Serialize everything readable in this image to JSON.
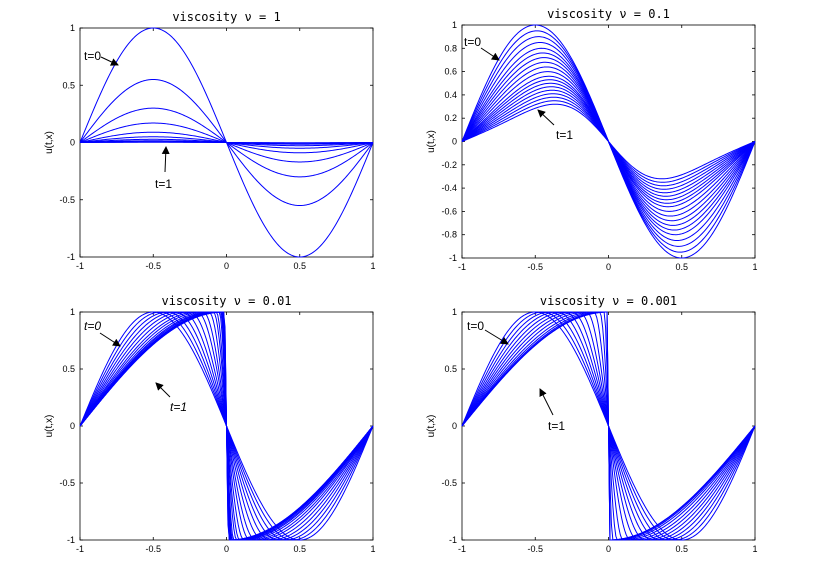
{
  "colors": {
    "curve": "#0000ff",
    "axes": "#000000",
    "background": "#ffffff"
  },
  "chart_data": [
    {
      "type": "line",
      "title": "viscosity ν = 1",
      "ylabel": "u(t,x)",
      "xlim": [
        -1,
        1
      ],
      "ylim": [
        -1,
        1
      ],
      "xticks": [
        "-1",
        "-0.5",
        "0",
        "0.5",
        "1"
      ],
      "yticks": [
        "1",
        "0.5",
        "0",
        "-0.5",
        "-1"
      ],
      "amplitudes": [
        1.0,
        0.55,
        0.3,
        0.17,
        0.09,
        0.05,
        0.028,
        0.015,
        0.008,
        0.004,
        0.002
      ],
      "annotations": [
        {
          "text": "t=0",
          "italic": false
        },
        {
          "text": "t=1",
          "italic": false
        }
      ]
    },
    {
      "type": "line",
      "title": "viscosity ν = 0.1",
      "ylabel": "u(t,x)",
      "xlim": [
        -1,
        1
      ],
      "ylim": [
        -1,
        1
      ],
      "xticks": [
        "-1",
        "-0.5",
        "0",
        "0.5",
        "1"
      ],
      "yticks": [
        "1",
        "0.8",
        "0.6",
        "0.4",
        "0.2",
        "0",
        "-0.2",
        "-0.4",
        "-0.6",
        "-0.8",
        "-1"
      ],
      "amplitudes": [
        1.0,
        0.95,
        0.9,
        0.85,
        0.8,
        0.76,
        0.72,
        0.68,
        0.64,
        0.6,
        0.56,
        0.53,
        0.5,
        0.47,
        0.44,
        0.41,
        0.38,
        0.35,
        0.32
      ],
      "annotations": [
        {
          "text": "t=0",
          "italic": false
        },
        {
          "text": "t=1",
          "italic": false
        }
      ]
    },
    {
      "type": "line",
      "title": "viscosity ν = 0.01",
      "ylabel": "u(t,x)",
      "xlim": [
        -1,
        1
      ],
      "ylim": [
        -1,
        1
      ],
      "xticks": [
        "-1",
        "-0.5",
        "0",
        "0.5",
        "1"
      ],
      "yticks": [
        "1",
        "0.5",
        "0",
        "-0.5",
        "-1"
      ],
      "peaks": [
        -0.5,
        -0.45,
        -0.4,
        -0.35,
        -0.3,
        -0.25,
        -0.2,
        -0.16,
        -0.12,
        -0.09,
        -0.07,
        -0.05,
        -0.04,
        -0.035,
        -0.03,
        -0.025,
        -0.022,
        -0.02,
        -0.018,
        -0.016,
        -0.015
      ],
      "annotations": [
        {
          "text": "t=0",
          "italic": true
        },
        {
          "text": "t=1",
          "italic": true
        }
      ]
    },
    {
      "type": "line",
      "title": "viscosity ν = 0.001",
      "ylabel": "u(t,x)",
      "xlim": [
        -1,
        1
      ],
      "ylim": [
        -1,
        1
      ],
      "xticks": [
        "-1",
        "-0.5",
        "0",
        "0.5",
        "1"
      ],
      "yticks": [
        "1",
        "0.5",
        "0",
        "-0.5",
        "-1"
      ],
      "peaks": [
        -0.5,
        -0.45,
        -0.4,
        -0.35,
        -0.3,
        -0.25,
        -0.2,
        -0.15,
        -0.1,
        -0.06,
        -0.03,
        -0.01,
        -0.003,
        -0.001
      ],
      "annotations": [
        {
          "text": "t=0",
          "italic": false
        },
        {
          "text": "t=1",
          "italic": false
        }
      ]
    }
  ]
}
